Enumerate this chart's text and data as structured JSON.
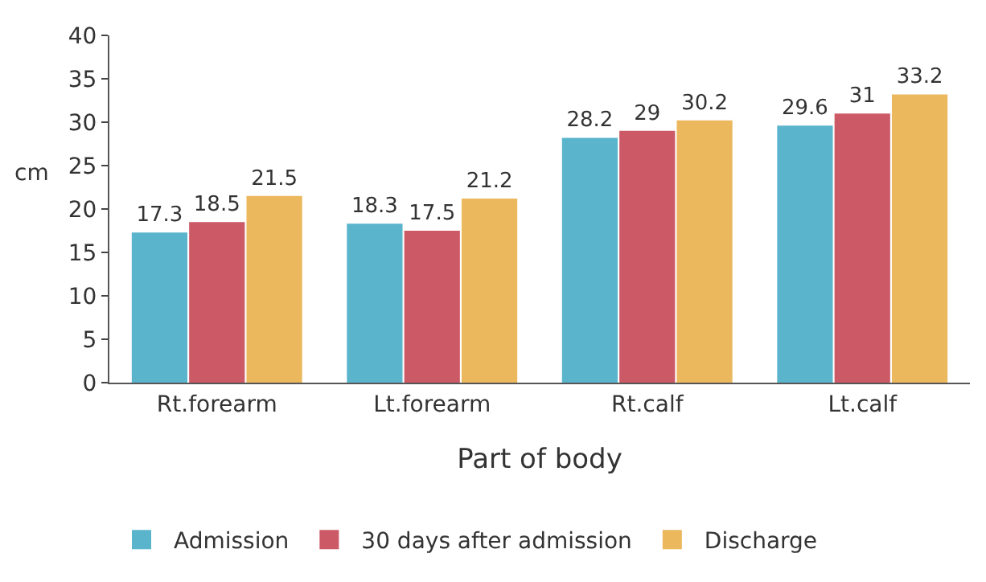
{
  "chart_data": {
    "type": "bar",
    "xlabel": "Part of body",
    "ylabel": "cm",
    "categories": [
      "Rt.forearm",
      "Lt.forearm",
      "Rt.calf",
      "Lt.calf"
    ],
    "series": [
      {
        "name": "Admission",
        "color": "#5ab4cc",
        "values": [
          17.3,
          18.3,
          28.2,
          29.6
        ]
      },
      {
        "name": "30 days after admission",
        "color": "#cc5a66",
        "values": [
          18.5,
          17.5,
          29,
          31
        ]
      },
      {
        "name": "Discharge",
        "color": "#ebb85e",
        "values": [
          21.5,
          21.2,
          30.2,
          33.2
        ]
      }
    ],
    "ylim": [
      0,
      40
    ],
    "yticks": [
      0,
      5,
      10,
      15,
      20,
      25,
      30,
      35,
      40
    ],
    "grid": false,
    "legend": "bottom",
    "data_labels": true
  }
}
